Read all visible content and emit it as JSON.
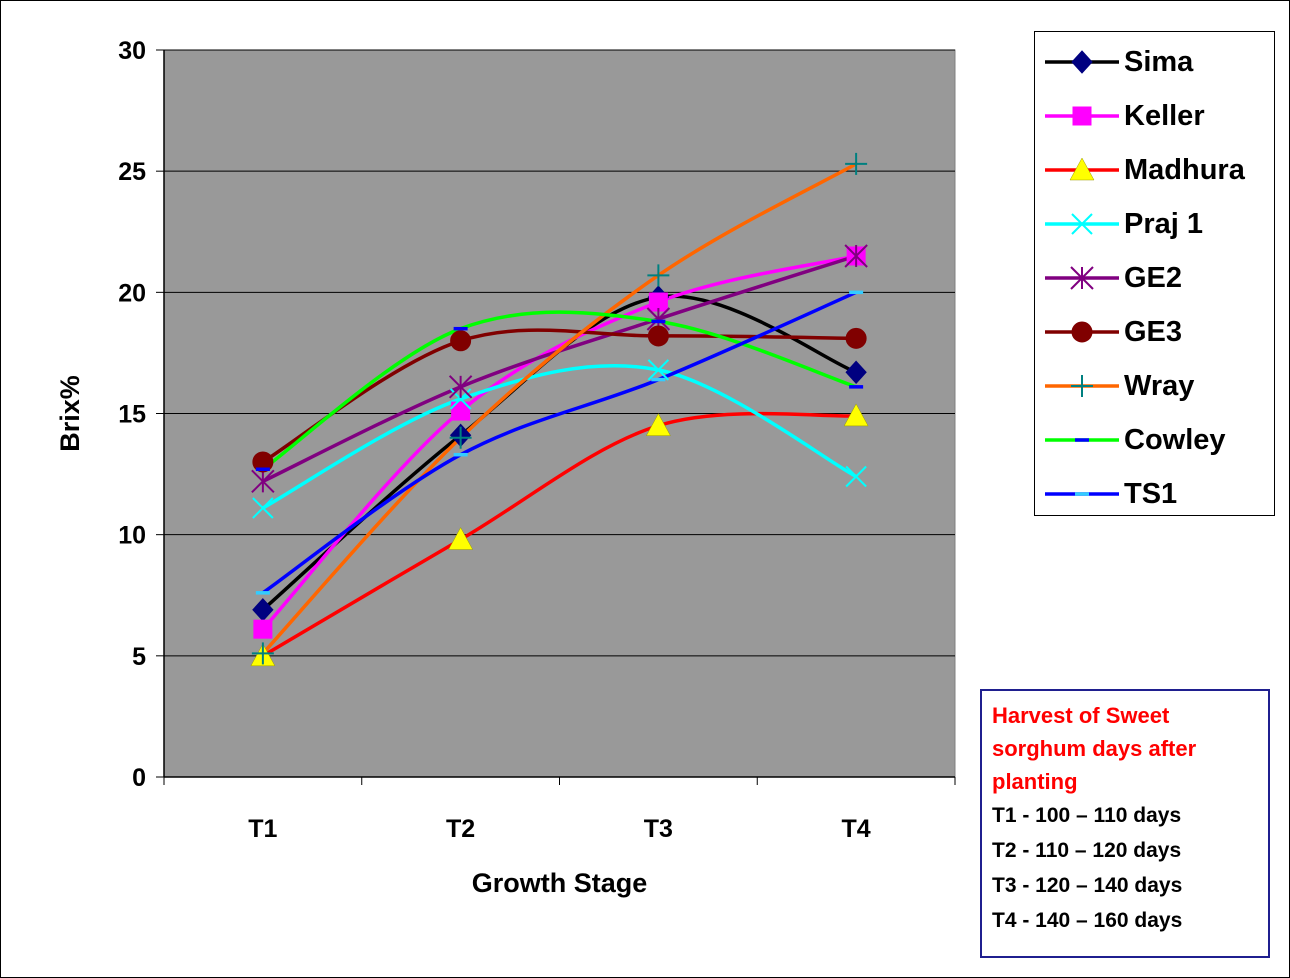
{
  "chart_data": {
    "type": "line",
    "title": "",
    "xlabel": "Growth Stage",
    "ylabel": "Brix%",
    "categories": [
      "T1",
      "T2",
      "T3",
      "T4"
    ],
    "ylim": [
      0,
      30
    ],
    "yticks": [
      0,
      5,
      10,
      15,
      20,
      25,
      30
    ],
    "grid": "horizontal",
    "plot_background": "#999999",
    "legend_position": "right",
    "series": [
      {
        "name": "Sima",
        "values": [
          6.9,
          14.1,
          19.8,
          16.7
        ],
        "color": "#000000",
        "marker_color": "#000080",
        "marker": "diamond"
      },
      {
        "name": "Keller",
        "values": [
          6.1,
          15.1,
          19.6,
          21.5
        ],
        "color": "#ff00ff",
        "marker_color": "#ff00ff",
        "marker": "square"
      },
      {
        "name": "Madhura",
        "values": [
          5.0,
          9.8,
          14.5,
          14.9
        ],
        "color": "#ff0000",
        "marker_color": "#ffff00",
        "marker": "triangle"
      },
      {
        "name": "Praj 1",
        "values": [
          11.1,
          15.6,
          16.8,
          12.4
        ],
        "color": "#00ffff",
        "marker_color": "#00ffff",
        "marker": "x"
      },
      {
        "name": "GE2",
        "values": [
          12.2,
          16.1,
          18.9,
          21.5
        ],
        "color": "#800080",
        "marker_color": "#800080",
        "marker": "star"
      },
      {
        "name": "GE3",
        "values": [
          13.0,
          18.0,
          18.2,
          18.1
        ],
        "color": "#800000",
        "marker_color": "#800000",
        "marker": "circle"
      },
      {
        "name": "Wray",
        "values": [
          5.1,
          14.0,
          20.7,
          25.3
        ],
        "color": "#ff6600",
        "marker_color": "#008080",
        "marker": "plus"
      },
      {
        "name": "Cowley",
        "values": [
          12.7,
          18.5,
          18.8,
          16.1
        ],
        "color": "#00ff00",
        "marker_color": "#0000ff",
        "marker": "dash"
      },
      {
        "name": "TS1",
        "values": [
          7.6,
          13.3,
          16.4,
          20.0
        ],
        "color": "#0000ff",
        "marker_color": "#33ccff",
        "marker": "dash"
      }
    ]
  },
  "note": {
    "title": "Harvest of Sweet sorghum days after planting",
    "lines": [
      "T1 - 100 – 110 days",
      "T2 - 110 – 120 days",
      "T3 - 120 – 140 days",
      "T4 - 140 – 160 days"
    ],
    "title_color": "#ff0000",
    "border_color": "#1f1f8f"
  }
}
